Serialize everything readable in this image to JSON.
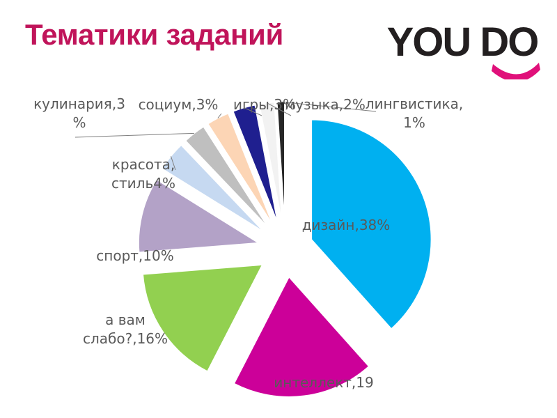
{
  "page": {
    "title": "Тематики заданий",
    "title_color": "#c0145a"
  },
  "logo": {
    "text": "YOU DO",
    "text_color": "#231f20",
    "smile_color": "#e0107a"
  },
  "chart_data": {
    "type": "pie",
    "exploded": true,
    "title": "",
    "slices": [
      {
        "category": "дизайн",
        "value": 38,
        "color": "#00b0f0",
        "label_lines": [
          "дизайн,38%"
        ]
      },
      {
        "category": "интеллект",
        "value": 19,
        "color": "#cc0099",
        "label_lines": [
          "интеллект,19"
        ]
      },
      {
        "category": "а вам слабо?",
        "value": 16,
        "color": "#92d050",
        "label_lines": [
          "а вам",
          "слабо?,16%"
        ]
      },
      {
        "category": "спорт",
        "value": 10,
        "color": "#b3a2c7",
        "label_lines": [
          "спорт,10%"
        ]
      },
      {
        "category": "красота, стиль",
        "value": 4,
        "color": "#c6d9f1",
        "label_lines": [
          "красота,",
          "стиль4%"
        ]
      },
      {
        "category": "кулинария",
        "value": 3,
        "color": "#bfbfbf",
        "label_lines": [
          "кулинария,3",
          "%"
        ]
      },
      {
        "category": "социум",
        "value": 3,
        "color": "#fcd5b5",
        "label_lines": [
          "социум,3%"
        ]
      },
      {
        "category": "игры",
        "value": 3,
        "color": "#1f1f8f",
        "label_lines": [
          "игры,3%"
        ]
      },
      {
        "category": "музыка",
        "value": 2,
        "color": "#f2f2f2",
        "label_lines": [
          "музыка,2%"
        ]
      },
      {
        "category": "лингвистика",
        "value": 1,
        "color": "#262626",
        "label_lines": [
          "лингвистика,",
          "1%"
        ]
      }
    ]
  }
}
